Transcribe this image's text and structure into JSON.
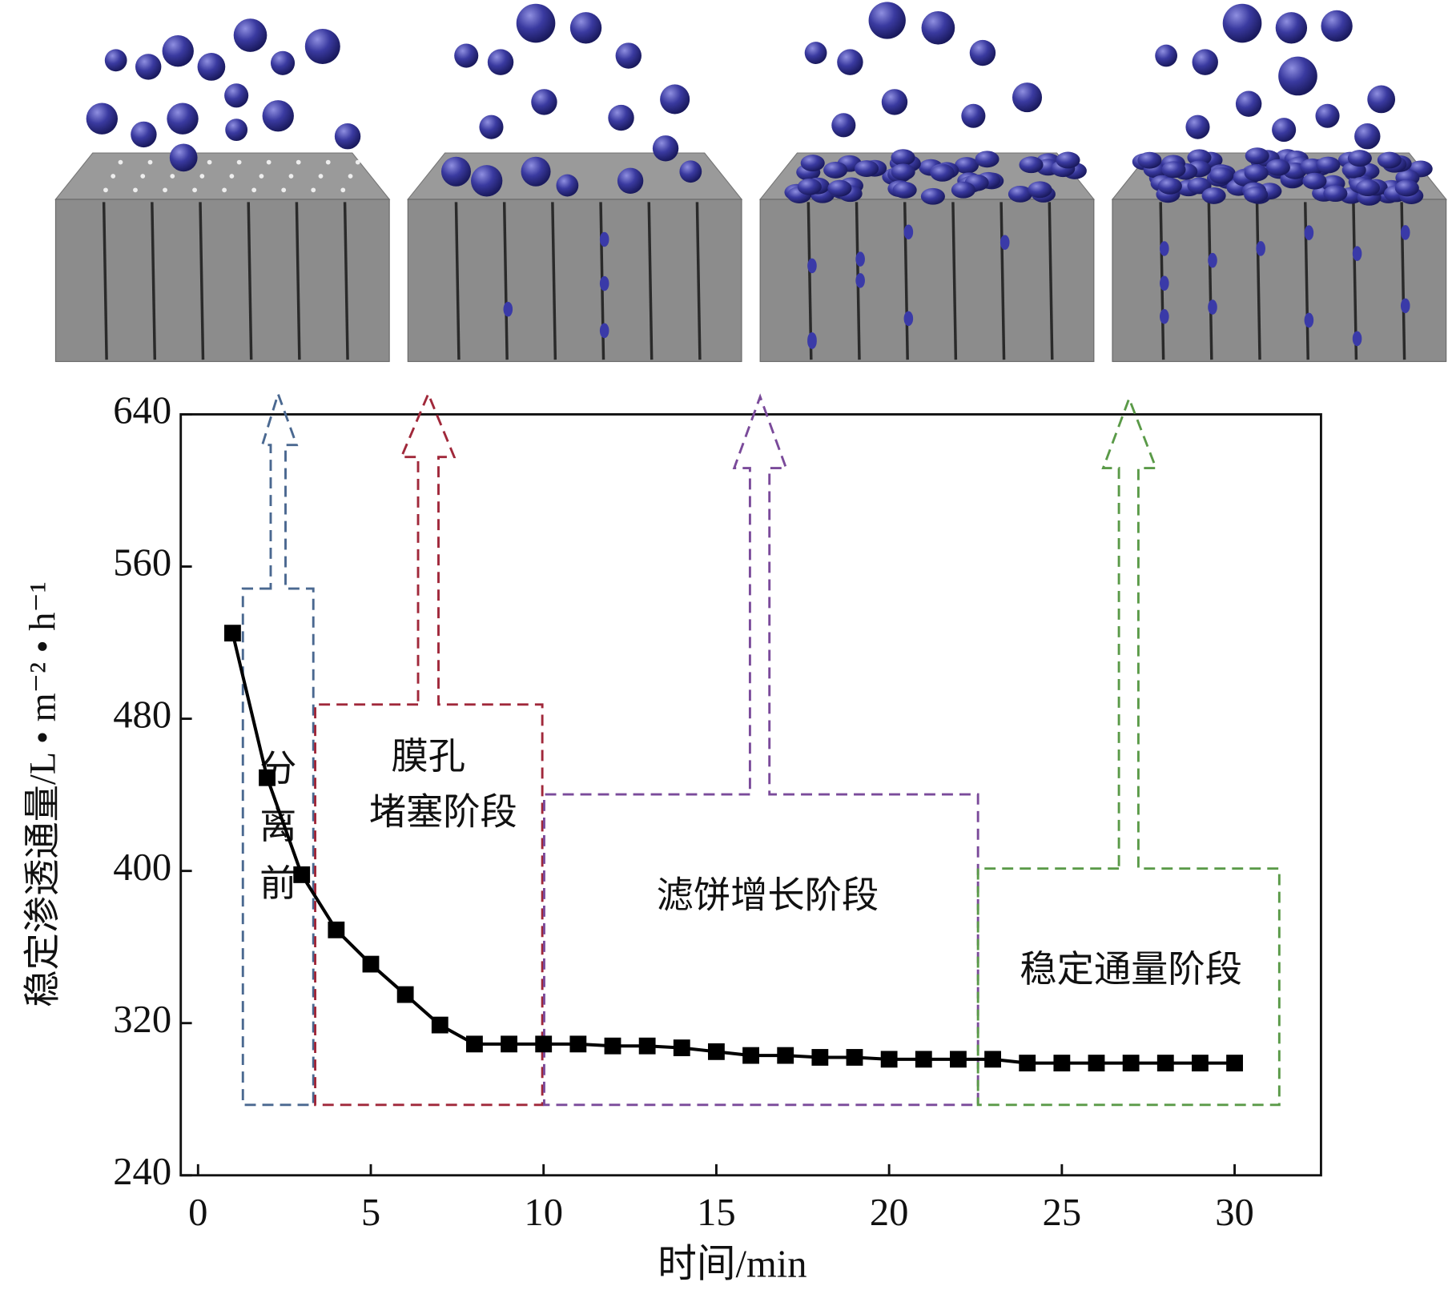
{
  "chart_data": {
    "type": "line",
    "x_label": "时间/min",
    "y_label": "稳定渗透通量/L • m⁻² • h⁻¹",
    "annotations": {
      "stage1": "分离前",
      "stage2": [
        "膜孔",
        "堵塞阶段"
      ],
      "stage3": "滤饼增长阶段",
      "stage4": "稳定通量阶段"
    },
    "x": [
      1,
      2,
      3,
      4,
      5,
      6,
      7,
      8,
      9,
      10,
      11,
      12,
      13,
      14,
      15,
      16,
      17,
      18,
      19,
      20,
      21,
      22,
      23,
      24,
      25,
      26,
      27,
      28,
      29,
      30
    ],
    "series": [
      {
        "color": "#000000",
        "values": [
          525,
          449,
          398,
          369,
          351,
          335,
          319,
          309,
          309,
          309,
          309,
          308,
          308,
          307,
          305,
          303,
          303,
          302,
          302,
          301,
          301,
          301,
          301,
          299,
          299,
          299,
          299,
          299,
          299,
          299
        ]
      }
    ],
    "xlim": [
      -0.5,
      32.5
    ],
    "ylim": [
      240,
      640
    ],
    "xticks": [
      0,
      5,
      10,
      15,
      20,
      25,
      30
    ],
    "yticks": [
      240,
      320,
      400,
      480,
      560,
      640
    ]
  }
}
